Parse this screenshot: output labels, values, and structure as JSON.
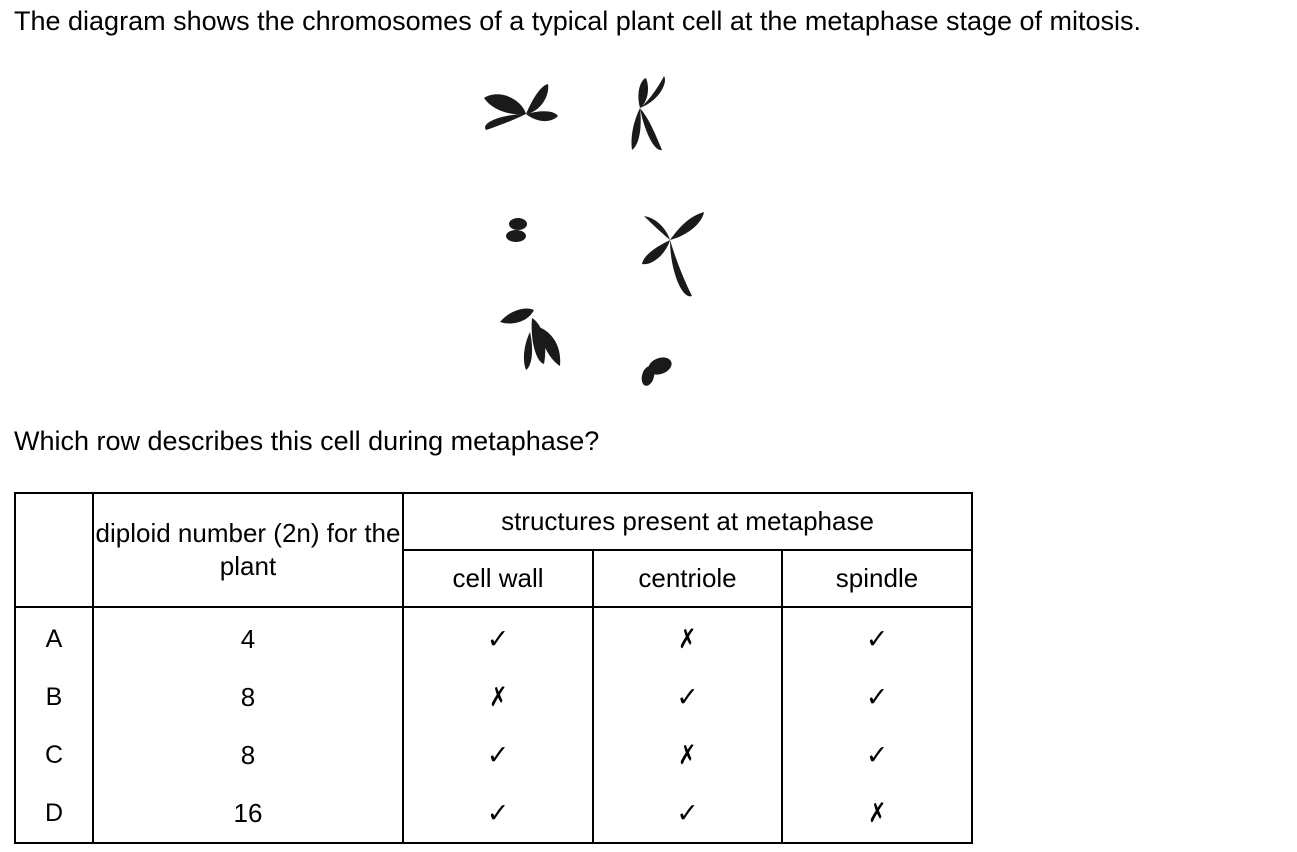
{
  "stem": "The diagram shows the chromosomes of a typical plant cell at the metaphase stage of mitosis.",
  "question": "Which row describes this cell during metaphase?",
  "table": {
    "header_diploid": "diploid number (2n) for the plant",
    "header_structures": "structures present at metaphase",
    "subheaders": [
      "cell wall",
      "centriole",
      "spindle"
    ],
    "rows": [
      {
        "letter": "A",
        "diploid": "4",
        "cell_wall": "✓",
        "centriole": "✗",
        "spindle": "✓"
      },
      {
        "letter": "B",
        "diploid": "8",
        "cell_wall": "✗",
        "centriole": "✓",
        "spindle": "✓"
      },
      {
        "letter": "C",
        "diploid": "8",
        "cell_wall": "✓",
        "centriole": "✗",
        "spindle": "✓"
      },
      {
        "letter": "D",
        "diploid": "16",
        "cell_wall": "✓",
        "centriole": "✓",
        "spindle": "✗"
      }
    ]
  }
}
